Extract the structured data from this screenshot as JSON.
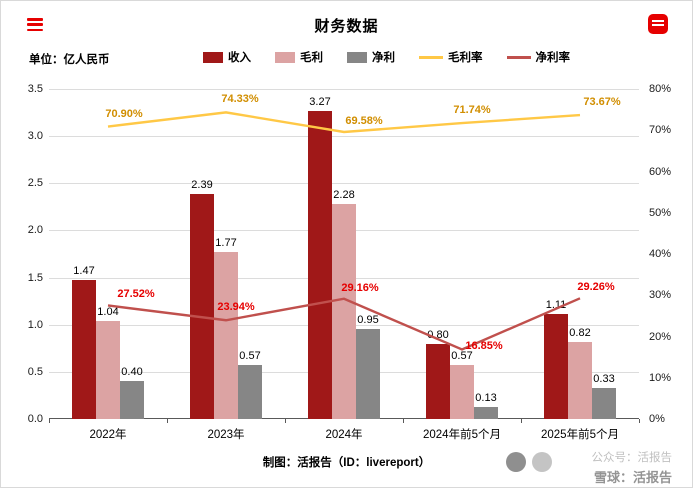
{
  "header": {
    "title": "财务数据",
    "menu_icon": "hamburger-icon",
    "logo_icon": "red-app-logo-icon"
  },
  "chart_data": {
    "type": "combo-bar-line",
    "title": "财务数据",
    "unit_label": "单位：亿人民币",
    "categories": [
      "2022年",
      "2023年",
      "2024年",
      "2024年前5个月",
      "2025年前5个月"
    ],
    "bar_series": [
      {
        "id": "income",
        "name": "收入",
        "color": "#a01818",
        "values": [
          1.47,
          2.39,
          3.27,
          0.8,
          1.11
        ]
      },
      {
        "id": "gross-profit",
        "name": "毛利",
        "color": "#dca3a3",
        "values": [
          1.04,
          1.77,
          2.28,
          0.57,
          0.82
        ]
      },
      {
        "id": "net-profit",
        "name": "净利",
        "color": "#868686",
        "values": [
          0.4,
          0.57,
          0.95,
          0.13,
          0.33
        ]
      }
    ],
    "line_series": [
      {
        "id": "gross-margin",
        "name": "毛利率",
        "color": "#ffc846",
        "label_color": "#d18e00",
        "values": [
          70.9,
          74.33,
          69.58,
          71.74,
          73.67
        ],
        "labels": [
          "70.90%",
          "74.33%",
          "69.58%",
          "71.74%",
          "73.67%"
        ]
      },
      {
        "id": "net-margin",
        "name": "净利率",
        "color": "#c0504d",
        "label_color": "#e60000",
        "values": [
          27.52,
          23.94,
          29.16,
          16.85,
          29.26
        ],
        "labels": [
          "27.52%",
          "23.94%",
          "29.16%",
          "16.85%",
          "29.26%"
        ]
      }
    ],
    "left_axis": {
      "min": 0,
      "max": 3.5,
      "step": 0.5,
      "ticks": [
        "0.0",
        "0.5",
        "1.0",
        "1.5",
        "2.0",
        "2.5",
        "3.0",
        "3.5"
      ]
    },
    "right_axis": {
      "min": 0,
      "max": 80,
      "step": 10,
      "ticks": [
        "0%",
        "10%",
        "20%",
        "30%",
        "40%",
        "50%",
        "60%",
        "70%",
        "80%"
      ]
    },
    "grid": true,
    "legend_position": "top"
  },
  "footer": {
    "credit": "制图：活报告（ID：livereport）",
    "watermark_line1": "公众号：活报告",
    "watermark_line2": "雪球：活报告"
  }
}
